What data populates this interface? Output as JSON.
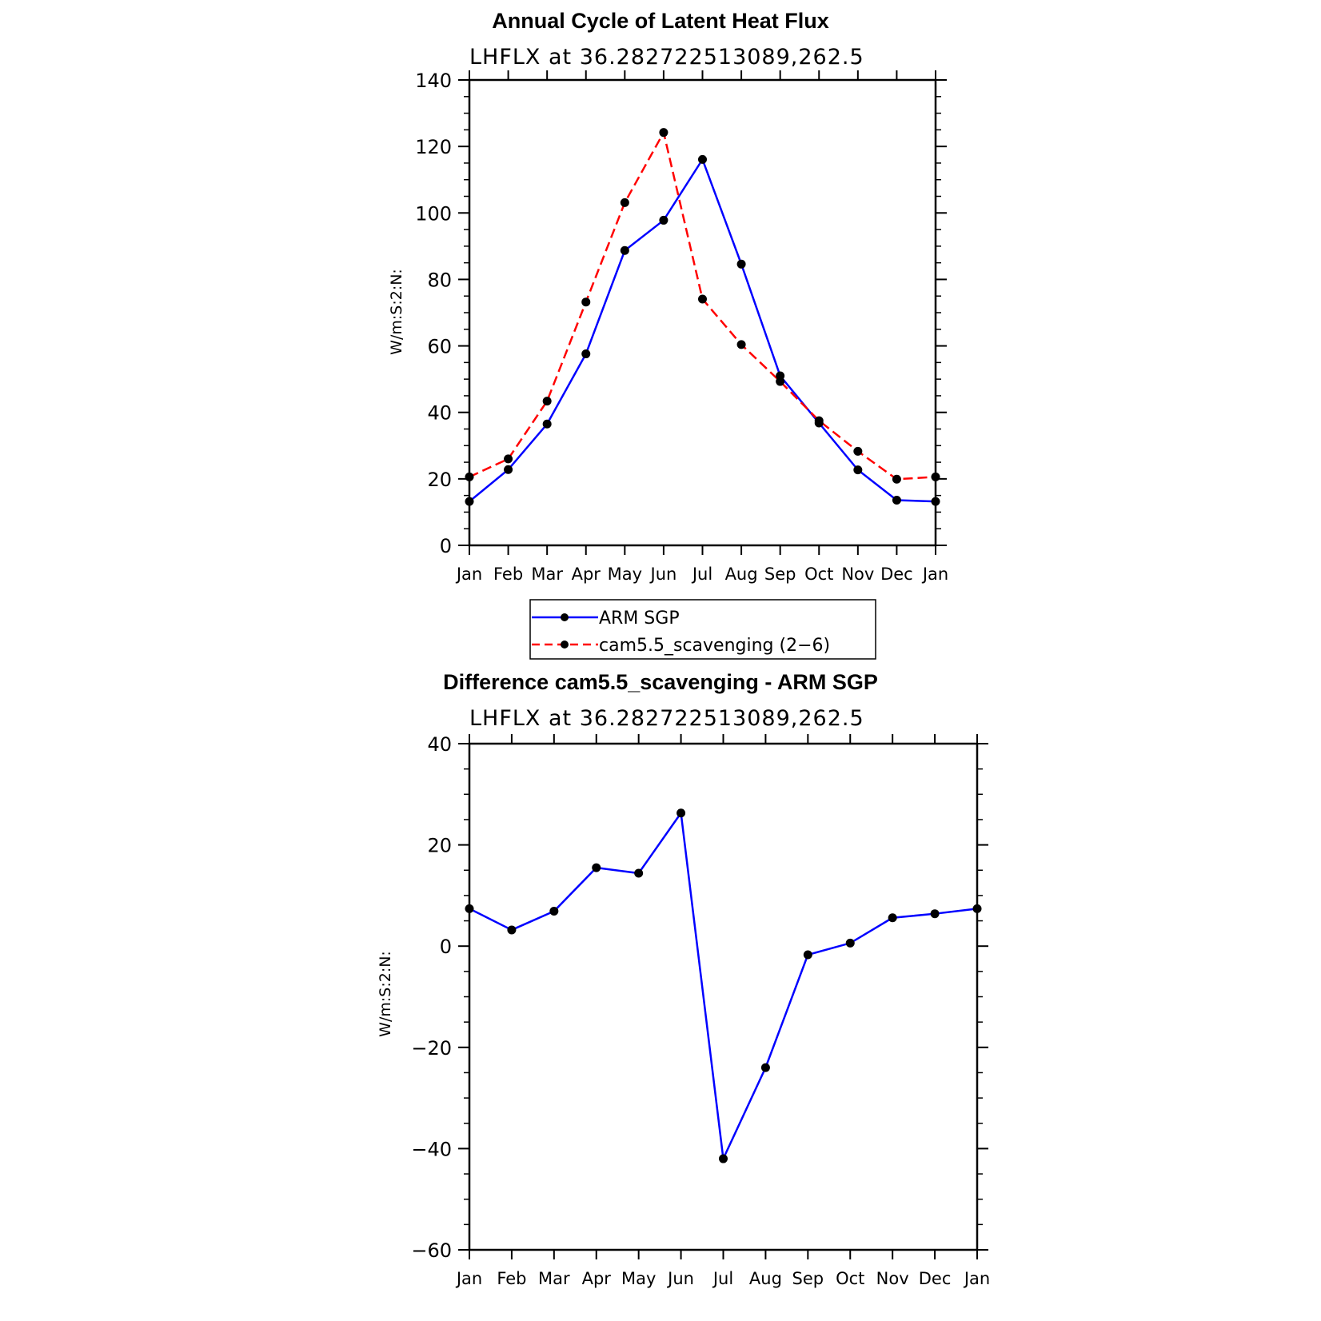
{
  "chart_data": [
    {
      "type": "line",
      "title": "Annual Cycle of Latent Heat Flux",
      "subtitle": "LHFLX at 36.282722513089,262.5",
      "xlabel": "",
      "ylabel": "W/m:S:2:N:",
      "categories": [
        "Jan",
        "Feb",
        "Mar",
        "Apr",
        "May",
        "Jun",
        "Jul",
        "Aug",
        "Sep",
        "Oct",
        "Nov",
        "Dec",
        "Jan"
      ],
      "ylim": [
        0,
        140
      ],
      "yticks": [
        0,
        20,
        40,
        60,
        80,
        100,
        120,
        140
      ],
      "series": [
        {
          "name": "ARM SGP",
          "color": "#0000ff",
          "dash": "solid",
          "values": [
            13.2,
            22.8,
            36.5,
            57.6,
            88.7,
            97.8,
            116.1,
            84.6,
            51.0,
            36.8,
            22.7,
            13.6,
            13.2
          ]
        },
        {
          "name": "cam5.5_scavenging (2−6)",
          "color": "#ff0000",
          "dash": "dashed",
          "values": [
            20.6,
            26.0,
            43.4,
            73.2,
            103.1,
            124.2,
            74.1,
            60.4,
            49.3,
            37.5,
            28.3,
            19.9,
            20.6
          ]
        }
      ],
      "legend": [
        {
          "label": "ARM SGP",
          "color": "#0000ff",
          "dash": "solid"
        },
        {
          "label": "cam5.5_scavenging (2−6)",
          "color": "#ff0000",
          "dash": "dashed"
        }
      ]
    },
    {
      "type": "line",
      "title": "Difference cam5.5_scavenging - ARM SGP",
      "subtitle": "LHFLX at 36.282722513089,262.5",
      "xlabel": "",
      "ylabel": "W/m:S:2:N:",
      "categories": [
        "Jan",
        "Feb",
        "Mar",
        "Apr",
        "May",
        "Jun",
        "Jul",
        "Aug",
        "Sep",
        "Oct",
        "Nov",
        "Dec",
        "Jan"
      ],
      "ylim": [
        -60,
        40
      ],
      "yticks": [
        -60,
        -40,
        -20,
        0,
        20,
        40
      ],
      "ytick_labels": [
        "−60",
        "−40",
        "−20",
        "0",
        "20",
        "40"
      ],
      "series": [
        {
          "name": "Difference",
          "color": "#0000ff",
          "dash": "solid",
          "values": [
            7.4,
            3.2,
            6.9,
            15.5,
            14.4,
            26.3,
            -42.0,
            -24.0,
            -1.7,
            0.6,
            5.6,
            6.4,
            7.4
          ]
        }
      ]
    }
  ]
}
